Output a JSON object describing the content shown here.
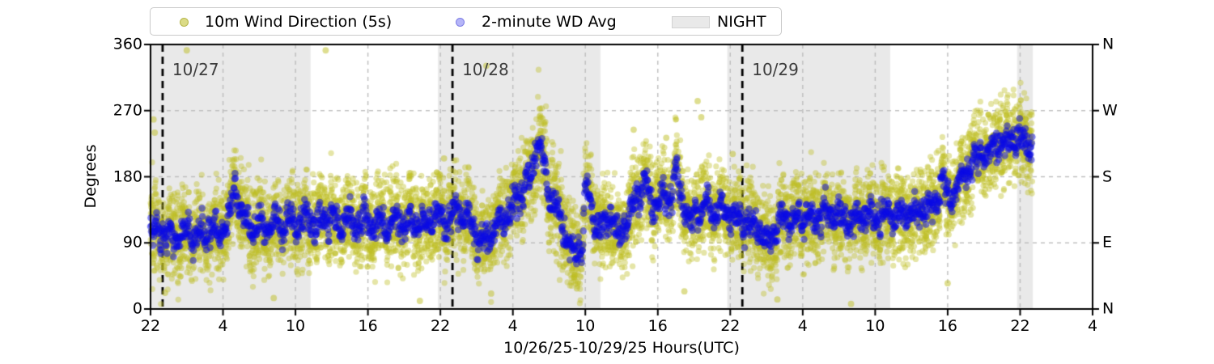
{
  "chart_data": {
    "type": "scatter",
    "title": "",
    "xlabel": "10/26/25-10/29/25  Hours(UTC)",
    "ylabel": "Degrees",
    "x_range": [
      22,
      100
    ],
    "y_range": [
      0,
      360
    ],
    "grid": "dashed",
    "legend_position": "top-outside",
    "x_ticks": [
      {
        "h": 22,
        "label": "22"
      },
      {
        "h": 28,
        "label": "4"
      },
      {
        "h": 34,
        "label": "10"
      },
      {
        "h": 40,
        "label": "16"
      },
      {
        "h": 46,
        "label": "22"
      },
      {
        "h": 52,
        "label": "4"
      },
      {
        "h": 58,
        "label": "10"
      },
      {
        "h": 64,
        "label": "16"
      },
      {
        "h": 70,
        "label": "22"
      },
      {
        "h": 76,
        "label": "4"
      },
      {
        "h": 82,
        "label": "10"
      },
      {
        "h": 88,
        "label": "16"
      },
      {
        "h": 94,
        "label": "22"
      },
      {
        "h": 100,
        "label": "4"
      }
    ],
    "y_ticks": [
      {
        "deg": 0,
        "label": "0",
        "compass": "N"
      },
      {
        "deg": 90,
        "label": "90",
        "compass": "E"
      },
      {
        "deg": 180,
        "label": "180",
        "compass": "S"
      },
      {
        "deg": 270,
        "label": "270",
        "compass": "W"
      },
      {
        "deg": 360,
        "label": "360",
        "compass": "N"
      }
    ],
    "legend": {
      "wd_label": "10m Wind Direction (5s)",
      "avg_label": "2-minute WD Avg",
      "night_label": "NIGHT"
    },
    "colors": {
      "wd_scatter": "#bdbd22",
      "wd_avg": "#0a0ae6",
      "night_band": "#e9e9e9",
      "grid": "#bdbdbd",
      "day_line": "#000000",
      "date_label": "#3d3d3d"
    },
    "night_bands_h": [
      [
        22.0,
        35.25
      ],
      [
        45.8,
        59.25
      ],
      [
        69.75,
        83.25
      ],
      [
        93.75,
        95.05
      ]
    ],
    "day_lines": [
      {
        "h": 23,
        "label": "10/27"
      },
      {
        "h": 47,
        "label": "10/28"
      },
      {
        "h": 71,
        "label": "10/29"
      }
    ],
    "data_span_h": [
      22.0,
      95.0
    ],
    "series": [
      {
        "name": "10m Wind Direction (5s)",
        "kind": "cloud",
        "spread_deg": 28,
        "step_h": 0.009,
        "alpha": 0.4,
        "radius": 3.6
      },
      {
        "name": "2-minute WD Avg",
        "kind": "cloud",
        "spread_deg": 8.5,
        "step_h": 0.0333,
        "alpha": 0.5,
        "radius": 4.3
      }
    ],
    "center_line": [
      [
        22,
        112
      ],
      [
        22.7,
        98
      ],
      [
        23.4,
        104
      ],
      [
        24,
        95
      ],
      [
        24.7,
        108
      ],
      [
        25.3,
        96
      ],
      [
        26,
        105
      ],
      [
        26.6,
        98
      ],
      [
        27.2,
        110
      ],
      [
        27.8,
        104
      ],
      [
        28.4,
        118
      ],
      [
        29,
        170
      ],
      [
        29.4,
        140
      ],
      [
        29.8,
        118
      ],
      [
        30.4,
        108
      ],
      [
        31,
        116
      ],
      [
        31.6,
        106
      ],
      [
        32.2,
        118
      ],
      [
        33,
        112
      ],
      [
        33.6,
        122
      ],
      [
        34.2,
        113
      ],
      [
        35,
        124
      ],
      [
        35.6,
        114
      ],
      [
        36.2,
        120
      ],
      [
        37,
        126
      ],
      [
        37.6,
        112
      ],
      [
        38.2,
        122
      ],
      [
        39,
        114
      ],
      [
        39.6,
        124
      ],
      [
        40.2,
        112
      ],
      [
        41,
        120
      ],
      [
        41.6,
        110
      ],
      [
        42.2,
        122
      ],
      [
        43,
        114
      ],
      [
        43.6,
        124
      ],
      [
        44.2,
        112
      ],
      [
        45,
        118
      ],
      [
        45.6,
        126
      ],
      [
        46.2,
        119
      ],
      [
        47,
        127
      ],
      [
        47.6,
        134
      ],
      [
        48.3,
        122
      ],
      [
        49,
        98
      ],
      [
        49.6,
        88
      ],
      [
        50.3,
        108
      ],
      [
        51,
        122
      ],
      [
        51.7,
        134
      ],
      [
        52.4,
        150
      ],
      [
        53.2,
        172
      ],
      [
        53.8,
        204
      ],
      [
        54.1,
        228
      ],
      [
        54.5,
        206
      ],
      [
        54.9,
        162
      ],
      [
        55.5,
        145
      ],
      [
        56.2,
        108
      ],
      [
        56.8,
        80
      ],
      [
        57.2,
        72
      ],
      [
        57.7,
        88
      ],
      [
        58.05,
        170
      ],
      [
        58.3,
        152
      ],
      [
        58.8,
        120
      ],
      [
        59.3,
        108
      ],
      [
        60,
        122
      ],
      [
        60.7,
        100
      ],
      [
        61.4,
        118
      ],
      [
        62.2,
        148
      ],
      [
        63,
        175
      ],
      [
        63.5,
        138
      ],
      [
        64.2,
        152
      ],
      [
        65,
        148
      ],
      [
        65.5,
        186
      ],
      [
        66,
        148
      ],
      [
        66.7,
        118
      ],
      [
        67.3,
        132
      ],
      [
        68,
        142
      ],
      [
        68.6,
        128
      ],
      [
        69.3,
        138
      ],
      [
        70,
        128
      ],
      [
        70.7,
        122
      ],
      [
        71.5,
        118
      ],
      [
        72.3,
        112
      ],
      [
        73,
        86
      ],
      [
        73.6,
        102
      ],
      [
        74.3,
        126
      ],
      [
        75,
        120
      ],
      [
        76,
        126
      ],
      [
        77,
        122
      ],
      [
        78,
        130
      ],
      [
        79,
        126
      ],
      [
        80,
        122
      ],
      [
        81,
        128
      ],
      [
        82,
        124
      ],
      [
        83,
        132
      ],
      [
        84,
        126
      ],
      [
        85,
        130
      ],
      [
        86,
        136
      ],
      [
        87,
        140
      ],
      [
        87.6,
        176
      ],
      [
        88,
        150
      ],
      [
        88.6,
        158
      ],
      [
        89.3,
        182
      ],
      [
        90,
        198
      ],
      [
        90.7,
        212
      ],
      [
        91.3,
        206
      ],
      [
        92,
        228
      ],
      [
        92.6,
        220
      ],
      [
        93.2,
        238
      ],
      [
        93.8,
        226
      ],
      [
        94.4,
        238
      ],
      [
        94.8,
        222
      ],
      [
        95,
        212
      ]
    ],
    "outliers_high": [
      [
        22.25,
        258
      ],
      [
        22.35,
        240
      ],
      [
        25.0,
        352
      ],
      [
        36.5,
        352
      ],
      [
        49.8,
        331
      ],
      [
        62.0,
        244
      ],
      [
        64.7,
        233
      ],
      [
        67.3,
        283
      ],
      [
        67.6,
        261
      ],
      [
        70.2,
        211
      ],
      [
        46.3,
        205
      ]
    ],
    "outliers_low": [
      [
        23.2,
        22
      ],
      [
        32.2,
        15
      ],
      [
        44.3,
        11
      ],
      [
        50.2,
        21
      ],
      [
        57.3,
        28
      ],
      [
        66.2,
        24
      ],
      [
        73.9,
        13
      ],
      [
        80,
        7
      ],
      [
        88,
        35
      ]
    ]
  }
}
